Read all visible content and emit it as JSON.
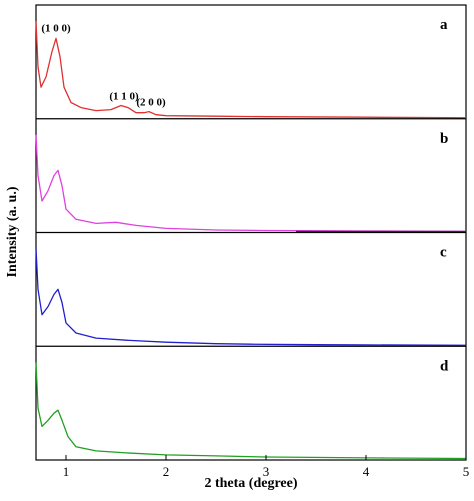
{
  "chart_data": {
    "type": "line",
    "xlabel": "2 theta (degree)",
    "ylabel": "Intensity (a. u.)",
    "xlim": [
      0.7,
      5
    ],
    "xticks": [
      "1",
      "2",
      "3",
      "4",
      "5"
    ],
    "xtick_values": [
      1,
      2,
      3,
      4,
      5
    ],
    "grid": false,
    "panels": [
      {
        "label": "a",
        "color": "#e03030",
        "x": [
          0.7,
          0.72,
          0.75,
          0.8,
          0.86,
          0.9,
          0.94,
          0.98,
          1.05,
          1.15,
          1.3,
          1.45,
          1.55,
          1.62,
          1.7,
          1.78,
          1.83,
          1.9,
          2.0,
          2.5,
          3.0,
          4.0,
          5.0
        ],
        "y": [
          0.95,
          0.5,
          0.3,
          0.4,
          0.65,
          0.78,
          0.6,
          0.3,
          0.15,
          0.1,
          0.07,
          0.08,
          0.12,
          0.1,
          0.05,
          0.05,
          0.06,
          0.03,
          0.02,
          0.015,
          0.01,
          0.005,
          0.0
        ],
        "peak_annotations": [
          {
            "text": "(1 0 0)",
            "x": 0.9
          },
          {
            "text": "(1 1 0)",
            "x": 1.58
          },
          {
            "text": "(2 0 0)",
            "x": 1.85
          }
        ]
      },
      {
        "label": "b",
        "color": "#e040e0",
        "x": [
          0.7,
          0.72,
          0.76,
          0.82,
          0.88,
          0.92,
          0.96,
          1.0,
          1.1,
          1.3,
          1.5,
          1.7,
          2.0,
          2.5,
          3.0,
          4.0,
          5.0
        ],
        "y": [
          0.95,
          0.55,
          0.3,
          0.4,
          0.55,
          0.6,
          0.45,
          0.22,
          0.12,
          0.08,
          0.09,
          0.06,
          0.03,
          0.015,
          0.01,
          0.005,
          0.0
        ],
        "accent_color": "#800080"
      },
      {
        "label": "c",
        "color": "#2020d0",
        "x": [
          0.7,
          0.72,
          0.76,
          0.82,
          0.88,
          0.92,
          0.96,
          1.0,
          1.1,
          1.3,
          1.6,
          2.0,
          2.5,
          2.85,
          3.5,
          4.0,
          5.0
        ],
        "y": [
          0.95,
          0.55,
          0.3,
          0.38,
          0.5,
          0.55,
          0.42,
          0.22,
          0.12,
          0.07,
          0.05,
          0.03,
          0.015,
          0.01,
          0.005,
          0.003,
          0.0
        ]
      },
      {
        "label": "d",
        "color": "#20a020",
        "x": [
          0.7,
          0.72,
          0.76,
          0.82,
          0.88,
          0.92,
          0.96,
          1.02,
          1.1,
          1.3,
          1.6,
          2.0,
          2.5,
          3.0,
          3.6,
          4.2,
          5.0
        ],
        "y": [
          0.95,
          0.5,
          0.32,
          0.38,
          0.45,
          0.48,
          0.38,
          0.22,
          0.12,
          0.08,
          0.06,
          0.04,
          0.03,
          0.02,
          0.015,
          0.01,
          0.005
        ]
      }
    ]
  }
}
